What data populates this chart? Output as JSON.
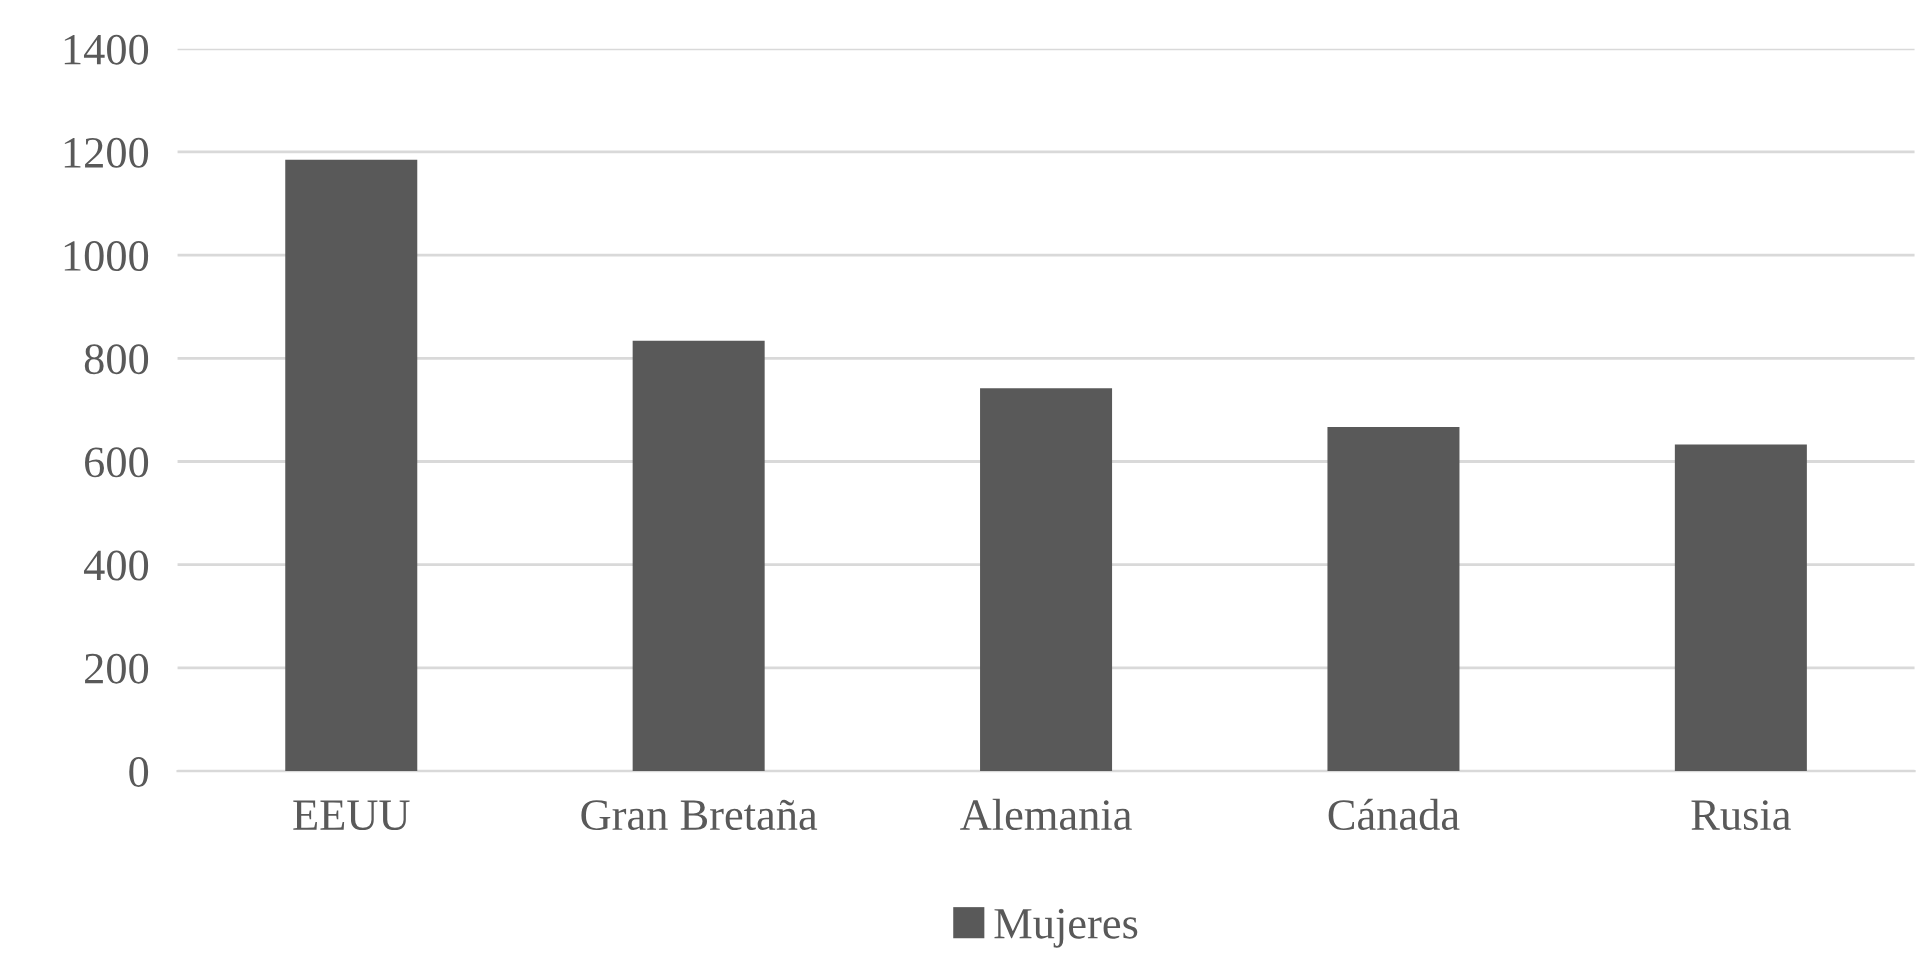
{
  "chart_data": {
    "type": "bar",
    "categories": [
      "EEUU",
      "Gran Bretaña",
      "Alemania",
      "Cánada",
      "Rusia"
    ],
    "series": [
      {
        "name": "Mujeres",
        "color": "#595959",
        "values": [
          1185,
          834,
          742,
          667,
          633
        ]
      }
    ],
    "ylim": [
      0,
      1400
    ],
    "yticks": [
      0,
      200,
      400,
      600,
      800,
      1000,
      1200,
      1400
    ],
    "grid": "y",
    "legend": "bottom"
  }
}
